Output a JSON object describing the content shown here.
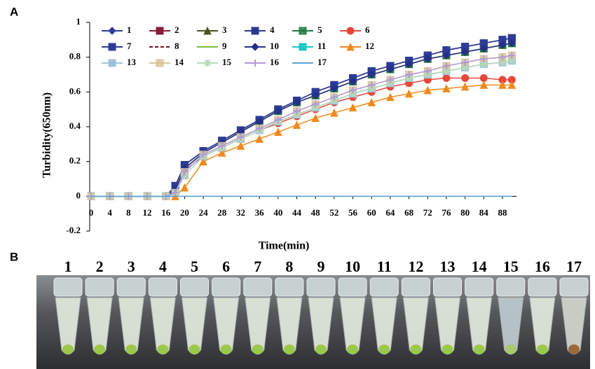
{
  "panel_labels": [
    "A",
    "B"
  ],
  "chart_data": {
    "type": "line",
    "y_label": "Turbidity(650nm)",
    "x_label": "Time(min)",
    "x": [
      0,
      4,
      8,
      12,
      16,
      18,
      20,
      24,
      28,
      32,
      36,
      40,
      44,
      48,
      52,
      56,
      60,
      64,
      68,
      72,
      76,
      80,
      84,
      88,
      90
    ],
    "xlim": [
      0,
      91
    ],
    "xticks": [
      0,
      4,
      8,
      12,
      16,
      20,
      24,
      28,
      32,
      36,
      40,
      44,
      48,
      52,
      56,
      60,
      64,
      68,
      72,
      76,
      80,
      84,
      88
    ],
    "ylim": [
      -0.2,
      1
    ],
    "yticks": [
      -0.2,
      0,
      0.2,
      0.4,
      0.6,
      0.8,
      1
    ],
    "series": [
      {
        "name": "1",
        "color": "#2e3f9e",
        "marker": "diamond",
        "values": [
          0,
          0,
          0,
          0,
          0,
          0.06,
          0.18,
          0.26,
          0.32,
          0.38,
          0.44,
          0.5,
          0.55,
          0.6,
          0.64,
          0.68,
          0.72,
          0.75,
          0.78,
          0.81,
          0.84,
          0.86,
          0.88,
          0.9,
          0.91
        ]
      },
      {
        "name": "2",
        "color": "#8b1a3a",
        "marker": "square",
        "values": [
          0,
          0,
          0,
          0,
          0,
          0.06,
          0.18,
          0.26,
          0.32,
          0.38,
          0.44,
          0.5,
          0.55,
          0.6,
          0.64,
          0.68,
          0.72,
          0.75,
          0.78,
          0.81,
          0.84,
          0.86,
          0.88,
          0.9,
          0.91
        ]
      },
      {
        "name": "3",
        "color": "#4b5320",
        "marker": "triangle",
        "values": [
          0,
          0,
          0,
          0,
          0,
          0.04,
          0.16,
          0.25,
          0.31,
          0.37,
          0.43,
          0.49,
          0.54,
          0.58,
          0.62,
          0.66,
          0.7,
          0.73,
          0.76,
          0.79,
          0.81,
          0.83,
          0.85,
          0.87,
          0.88
        ]
      },
      {
        "name": "4",
        "color": "#2b3a8f",
        "marker": "square",
        "values": [
          0,
          0,
          0,
          0,
          0,
          0.06,
          0.18,
          0.26,
          0.32,
          0.38,
          0.44,
          0.5,
          0.55,
          0.6,
          0.64,
          0.68,
          0.72,
          0.75,
          0.78,
          0.81,
          0.84,
          0.86,
          0.88,
          0.9,
          0.91
        ]
      },
      {
        "name": "5",
        "color": "#1e7b3c",
        "marker": "squarex",
        "values": [
          0,
          0,
          0,
          0,
          0,
          0.04,
          0.16,
          0.25,
          0.31,
          0.37,
          0.43,
          0.49,
          0.54,
          0.58,
          0.62,
          0.66,
          0.7,
          0.73,
          0.76,
          0.79,
          0.81,
          0.83,
          0.85,
          0.87,
          0.88
        ]
      },
      {
        "name": "6",
        "color": "#e8473a",
        "marker": "circle",
        "values": [
          0,
          0,
          0,
          0,
          0,
          0.03,
          0.15,
          0.23,
          0.28,
          0.33,
          0.38,
          0.42,
          0.46,
          0.5,
          0.54,
          0.57,
          0.6,
          0.63,
          0.65,
          0.67,
          0.68,
          0.68,
          0.68,
          0.67,
          0.67
        ]
      },
      {
        "name": "7",
        "color": "#2c3c96",
        "marker": "square",
        "values": [
          0,
          0,
          0,
          0,
          0,
          0.06,
          0.18,
          0.26,
          0.32,
          0.38,
          0.44,
          0.5,
          0.55,
          0.6,
          0.64,
          0.68,
          0.72,
          0.75,
          0.78,
          0.81,
          0.84,
          0.86,
          0.88,
          0.9,
          0.91
        ]
      },
      {
        "name": "8",
        "color": "#7a1020",
        "marker": "dash",
        "values": [
          0,
          0,
          0,
          0,
          0,
          0.04,
          0.16,
          0.25,
          0.31,
          0.37,
          0.43,
          0.49,
          0.54,
          0.58,
          0.62,
          0.66,
          0.7,
          0.73,
          0.76,
          0.79,
          0.81,
          0.83,
          0.85,
          0.87,
          0.88
        ]
      },
      {
        "name": "9",
        "color": "#7cc242",
        "marker": "none",
        "values": [
          0,
          0,
          0,
          0,
          0,
          0.04,
          0.16,
          0.25,
          0.31,
          0.37,
          0.43,
          0.49,
          0.54,
          0.58,
          0.62,
          0.66,
          0.7,
          0.73,
          0.76,
          0.79,
          0.81,
          0.83,
          0.85,
          0.87,
          0.88
        ]
      },
      {
        "name": "10",
        "color": "#26308a",
        "marker": "diamond",
        "values": [
          0,
          0,
          0,
          0,
          0,
          0.04,
          0.16,
          0.25,
          0.31,
          0.37,
          0.43,
          0.49,
          0.54,
          0.58,
          0.62,
          0.66,
          0.7,
          0.73,
          0.76,
          0.79,
          0.81,
          0.83,
          0.85,
          0.87,
          0.88
        ]
      },
      {
        "name": "11",
        "color": "#1cc6c6",
        "marker": "square",
        "values": [
          0,
          0,
          0,
          0,
          0,
          0.02,
          0.12,
          0.23,
          0.28,
          0.33,
          0.38,
          0.43,
          0.47,
          0.51,
          0.55,
          0.59,
          0.62,
          0.65,
          0.68,
          0.7,
          0.72,
          0.74,
          0.76,
          0.77,
          0.78
        ]
      },
      {
        "name": "12",
        "color": "#f08a1c",
        "marker": "triangle",
        "values": [
          0,
          0,
          0,
          0,
          0,
          0,
          0.05,
          0.2,
          0.25,
          0.29,
          0.33,
          0.37,
          0.41,
          0.45,
          0.48,
          0.51,
          0.54,
          0.57,
          0.59,
          0.61,
          0.62,
          0.63,
          0.64,
          0.64,
          0.64
        ]
      },
      {
        "name": "13",
        "color": "#9fc2d8",
        "marker": "square",
        "values": [
          0,
          0,
          0,
          0,
          0,
          0.02,
          0.12,
          0.23,
          0.28,
          0.33,
          0.38,
          0.43,
          0.47,
          0.51,
          0.55,
          0.59,
          0.62,
          0.65,
          0.68,
          0.7,
          0.72,
          0.74,
          0.76,
          0.77,
          0.78
        ]
      },
      {
        "name": "14",
        "color": "#d9c39a",
        "marker": "squarex",
        "values": [
          0,
          0,
          0,
          0,
          0,
          0.02,
          0.14,
          0.24,
          0.29,
          0.34,
          0.39,
          0.44,
          0.49,
          0.53,
          0.57,
          0.61,
          0.64,
          0.67,
          0.7,
          0.72,
          0.75,
          0.77,
          0.79,
          0.8,
          0.81
        ]
      },
      {
        "name": "15",
        "color": "#b8d8b8",
        "marker": "star",
        "values": [
          0,
          0,
          0,
          0,
          0,
          0.02,
          0.12,
          0.23,
          0.28,
          0.33,
          0.38,
          0.43,
          0.47,
          0.51,
          0.55,
          0.59,
          0.62,
          0.65,
          0.68,
          0.7,
          0.72,
          0.74,
          0.76,
          0.77,
          0.78
        ]
      },
      {
        "name": "16",
        "color": "#b09ad8",
        "marker": "plus",
        "values": [
          0,
          0,
          0,
          0,
          0,
          0.02,
          0.14,
          0.24,
          0.29,
          0.34,
          0.39,
          0.44,
          0.49,
          0.53,
          0.57,
          0.61,
          0.64,
          0.67,
          0.7,
          0.72,
          0.75,
          0.77,
          0.79,
          0.8,
          0.81
        ]
      },
      {
        "name": "17",
        "color": "#5ba3d8",
        "marker": "none",
        "values": [
          0,
          0,
          0,
          0,
          0,
          0,
          0,
          0,
          0,
          0,
          0,
          0,
          0,
          0,
          0,
          0,
          0,
          0,
          0,
          0,
          0,
          0,
          0,
          0,
          0
        ]
      }
    ]
  },
  "photo": {
    "tube_labels": [
      "1",
      "2",
      "3",
      "4",
      "5",
      "6",
      "7",
      "8",
      "9",
      "10",
      "11",
      "12",
      "13",
      "14",
      "15",
      "16",
      "17"
    ]
  }
}
